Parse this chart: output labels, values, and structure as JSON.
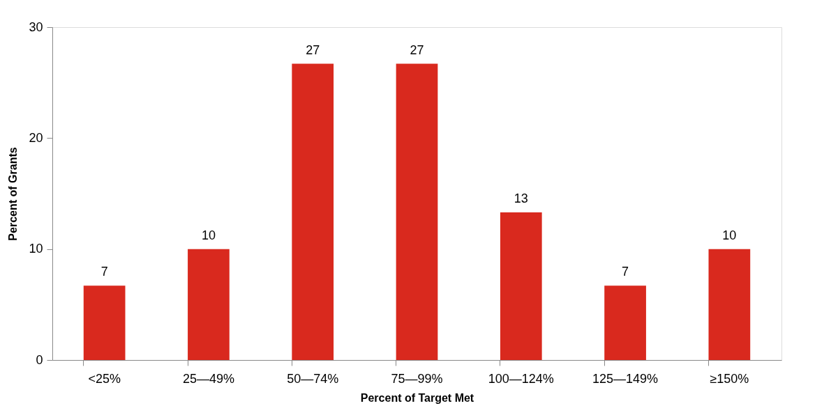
{
  "chart_data": {
    "type": "bar",
    "xlabel": "Percent of Target Met",
    "ylabel": "Percent of Grants",
    "categories": [
      "<25%",
      "25—49%",
      "50—74%",
      "75—99%",
      "100—124%",
      "125—149%",
      "≥150%"
    ],
    "values": [
      6.7,
      10,
      26.7,
      26.7,
      13.3,
      6.7,
      10
    ],
    "value_labels": [
      "7",
      "10",
      "27",
      "27",
      "13",
      "7",
      "10"
    ],
    "color": "#d9291e",
    "ylim": [
      0,
      30
    ],
    "yticks": [
      0,
      10,
      20,
      30
    ],
    "grid": false
  }
}
